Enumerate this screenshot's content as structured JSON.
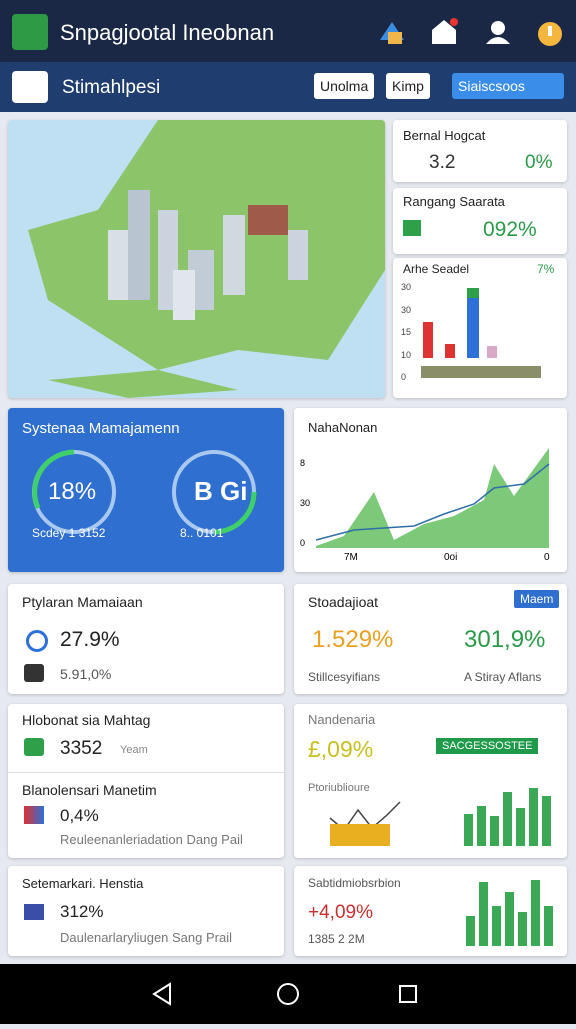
{
  "header": {
    "title": "Snpagjootal Ineobnan"
  },
  "toolbar": {
    "title": "Stimahlpesi",
    "buttons": [
      "Unolma",
      "Kimp"
    ],
    "dropdown": "Siaiscsoos"
  },
  "side_cards": [
    {
      "title": "Bernal Hogcat",
      "value": "3.2",
      "change": "0%"
    },
    {
      "title": "Rangang Saarata",
      "value": "092%"
    },
    {
      "title": "Arhe Seadel",
      "value": "7%",
      "axis_labels": [
        "30",
        "30",
        "15",
        "10",
        "0"
      ]
    }
  ],
  "gauge_card": {
    "title": "Systenaa Mamajamenn",
    "left_value": "18%",
    "left_caption": "Scdey 1 3152",
    "right_value": "B Gi",
    "right_caption": "8.. 0101"
  },
  "line_card": {
    "title": "NahaNonan",
    "y_labels": [
      "8",
      "30",
      "0"
    ],
    "x_labels": [
      "7M",
      "0oi",
      "0"
    ]
  },
  "cards": [
    {
      "title": "Ptylaran Mamaiaan",
      "items": [
        {
          "value": "27.9%"
        },
        {
          "value": "5.91,0%"
        }
      ]
    },
    {
      "title": "Stoadajioat",
      "badge": "Maem",
      "values": [
        "1.529%",
        "301,9%"
      ],
      "captions": [
        "Stillcesyifians",
        "A Stiray Aflans"
      ]
    },
    {
      "title": "Hlobonat sia Mahtag",
      "value": "3352",
      "unit": "Yeam",
      "subtitle": "Blanolensari Manetim",
      "sub_value": "0,4%",
      "caption": "Reuleenanleriadation Dang Pail"
    },
    {
      "title": "Nandenaria",
      "value": "£,09%",
      "badge": "SACGESSOSTEE",
      "subtitle": "Ptoriublioure"
    },
    {
      "title": "Setemarkari. Henstia",
      "value": "312%",
      "caption": "Daulenarlaryliugen Sang Prail"
    },
    {
      "title": "Sabtidmiobsrbion",
      "value": "+4,09%",
      "caption": "1385 2 2M"
    }
  ]
}
